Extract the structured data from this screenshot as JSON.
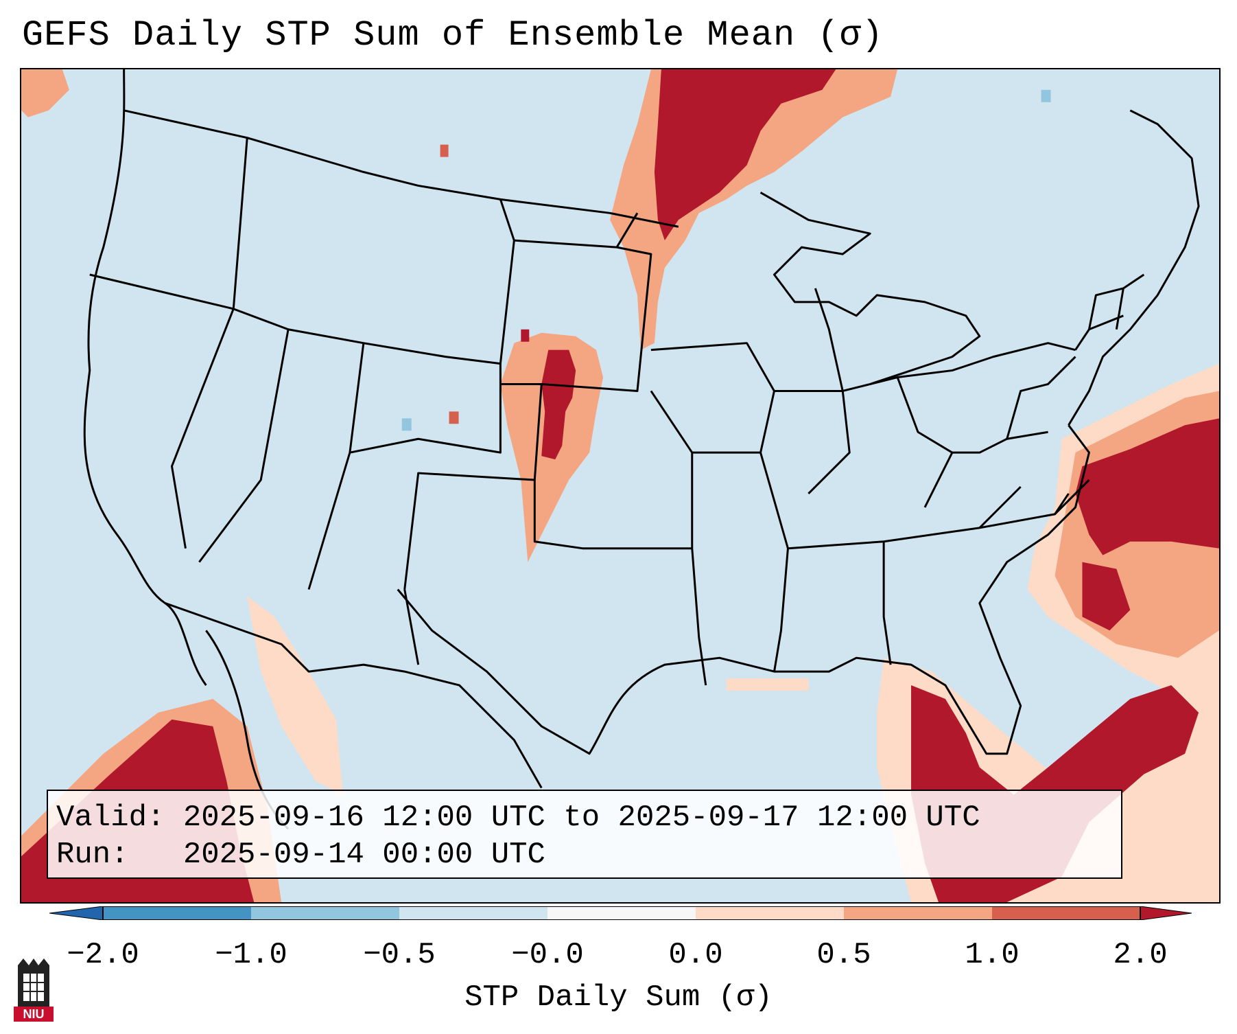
{
  "title": "GEFS Daily STP Sum of Ensemble Mean (σ)",
  "info": {
    "valid_label": "Valid:",
    "valid_value": "2025-09-16 12:00 UTC to 2025-09-17 12:00 UTC",
    "run_label": "Run:",
    "run_value": "2025-09-14 00:00 UTC"
  },
  "colorbar": {
    "label": "STP Daily Sum (σ)",
    "ticks": [
      "−2.0",
      "−1.0",
      "−0.5",
      "−0.0",
      "0.0",
      "0.5",
      "1.0",
      "2.0"
    ],
    "colors": [
      "#2166ac",
      "#4393c3",
      "#92c5de",
      "#d1e5f0",
      "#f7f7f7",
      "#fddbc7",
      "#f4a582",
      "#d6604d",
      "#b2182b"
    ]
  },
  "map": {
    "background_color": "#d1e5f0",
    "anomaly_regions": [
      "Lake Superior / northern Minnesota",
      "Nebraska / Kansas border",
      "Mid-Atlantic coast offshore",
      "Florida / western Atlantic",
      "Baja California Pacific"
    ]
  },
  "logo": {
    "text": "NIU"
  }
}
